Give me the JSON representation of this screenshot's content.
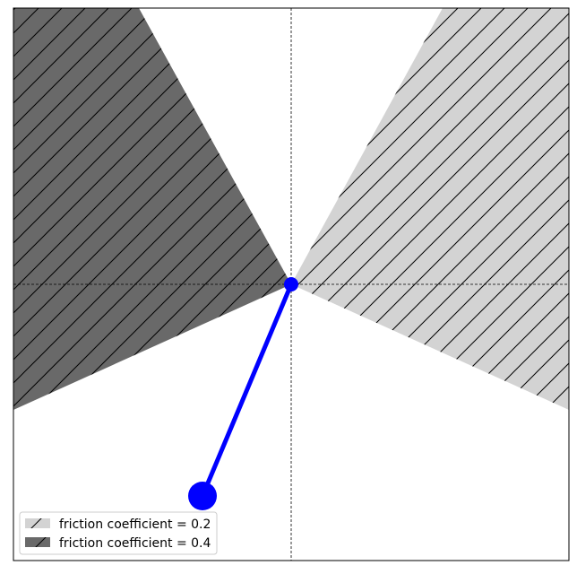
{
  "colors": {
    "light_region": "#d3d3d3",
    "dark_region": "#696969",
    "hatch": "#000000",
    "pendulum": "#0000ff",
    "axis_lines": "#000000",
    "background": "#ffffff"
  },
  "legend": {
    "placement": "lower-left",
    "entries": [
      {
        "label": "friction coefficient = 0.2",
        "color": "#d3d3d3"
      },
      {
        "label": "friction coefficient = 0.4",
        "color": "#696969"
      }
    ]
  }
}
